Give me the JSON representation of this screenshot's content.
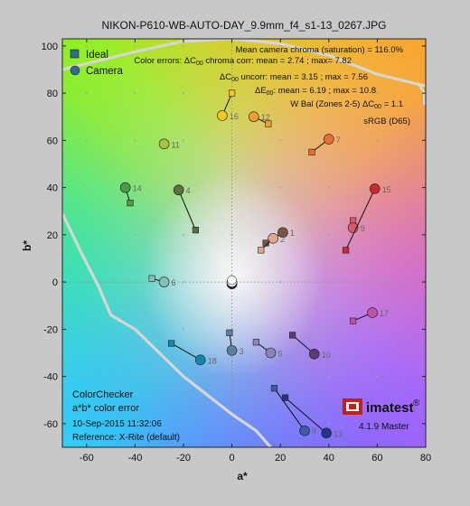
{
  "chart_data": {
    "type": "scatter",
    "title": "NIKON-P610-WB-AUTO-DAY_9.9mm_f4_s1-13_0267.JPG",
    "xlabel": "a*",
    "ylabel": "b*",
    "xlim": [
      -70,
      80
    ],
    "ylim": [
      -70,
      103
    ],
    "xticks": [
      -60,
      -40,
      -20,
      0,
      20,
      40,
      60,
      80
    ],
    "yticks": [
      -60,
      -40,
      -20,
      0,
      20,
      40,
      60,
      80,
      100
    ],
    "grid": true,
    "legend": {
      "placement": "top-left",
      "entries": [
        {
          "name": "Ideal",
          "marker": "square",
          "color": "#2e6e8e"
        },
        {
          "name": "Camera",
          "marker": "circle",
          "color": "#2e6e8e"
        }
      ]
    },
    "annotations": {
      "line1": "Mean camera chroma (saturation) = 116.0%",
      "line2_prefix": "Color errors:  ΔC",
      "line2_sub": "00",
      "line2_suffix": " chroma corr: mean = 2.74 ; max= 7.82",
      "line3_prefix": "ΔC",
      "line3_sub": "00",
      "line3_suffix": " uncorr: mean = 3.15 ; max = 7.56",
      "line4_prefix": "ΔE",
      "line4_sub": "00",
      "line4_suffix": ": mean = 6.19 ; max = 10.8",
      "line5_prefix": "W Bal (Zones 2-5)   ΔC",
      "line5_sub": "00",
      "line5_suffix": " = 1.1",
      "line6": "sRGB (D65)"
    },
    "info": {
      "chart_name": "ColorChecker",
      "subtitle": "a*b* color error",
      "date": "10-Sep-2015 11:32:06",
      "reference": "Reference: X-Rite (default)"
    },
    "brand": {
      "name": "imatest",
      "mark": "®",
      "version": "4.1.9 Master"
    },
    "patches": [
      {
        "id": "1",
        "ideal": [
          14,
          16.5
        ],
        "camera": [
          21,
          21
        ],
        "color": "#7a5545"
      },
      {
        "id": "2",
        "ideal": [
          12,
          13.5
        ],
        "camera": [
          17,
          18.5
        ],
        "color": "#e0a88e"
      },
      {
        "id": "3",
        "ideal": [
          -1,
          -21.5
        ],
        "camera": [
          0,
          -29
        ],
        "color": "#5c7ea0"
      },
      {
        "id": "4",
        "ideal": [
          -15,
          22
        ],
        "camera": [
          -22,
          39
        ],
        "color": "#5a7040"
      },
      {
        "id": "5",
        "ideal": [
          10,
          -25.5
        ],
        "camera": [
          16,
          -30
        ],
        "color": "#8a86bc"
      },
      {
        "id": "6",
        "ideal": [
          -33,
          1.5
        ],
        "camera": [
          -28,
          0
        ],
        "color": "#85c0b6"
      },
      {
        "id": "7",
        "ideal": [
          33,
          55
        ],
        "camera": [
          40,
          60.5
        ],
        "color": "#e86e34"
      },
      {
        "id": "8",
        "ideal": [
          17.5,
          -45
        ],
        "camera": [
          30,
          -63
        ],
        "color": "#3e5aa8"
      },
      {
        "id": "9",
        "ideal": [
          50,
          26
        ],
        "camera": [
          50,
          23
        ],
        "color": "#d85a68"
      },
      {
        "id": "10",
        "ideal": [
          25,
          -22.5
        ],
        "camera": [
          34,
          -30.5
        ],
        "color": "#5a3c70"
      },
      {
        "id": "11",
        "ideal": [
          -28,
          58
        ],
        "camera": [
          -28,
          58.5
        ],
        "color": "#a6c440"
      },
      {
        "id": "12",
        "ideal": [
          15,
          67
        ],
        "camera": [
          9,
          70
        ],
        "color": "#f0a030"
      },
      {
        "id": "13",
        "ideal": [
          22,
          -49
        ],
        "camera": [
          39,
          -64
        ],
        "color": "#24348a"
      },
      {
        "id": "14",
        "ideal": [
          -42,
          33.5
        ],
        "camera": [
          -44,
          40
        ],
        "color": "#4e9a48"
      },
      {
        "id": "15",
        "ideal": [
          47,
          13.5
        ],
        "camera": [
          59,
          39.5
        ],
        "color": "#c82a30"
      },
      {
        "id": "16",
        "ideal": [
          0,
          80
        ],
        "camera": [
          -4,
          70.5
        ],
        "color": "#f0c820"
      },
      {
        "id": "17",
        "ideal": [
          50,
          -16.5
        ],
        "camera": [
          58,
          -13
        ],
        "color": "#c050a0"
      },
      {
        "id": "18",
        "ideal": [
          -25,
          -26
        ],
        "camera": [
          -13,
          -33
        ],
        "color": "#0e88ac"
      }
    ],
    "neutrals": [
      {
        "ideal": [
          0,
          0
        ],
        "camera": [
          0,
          0
        ]
      }
    ],
    "gamut_boundary": [
      [
        -70,
        90
      ],
      [
        -60,
        92.5
      ],
      [
        -40,
        97.5
      ],
      [
        -20,
        102
      ],
      [
        0,
        103
      ],
      [
        20,
        101
      ],
      [
        40,
        96
      ],
      [
        60,
        88
      ],
      [
        80,
        83
      ]
    ],
    "gamut_boundary_lower": [
      [
        -70,
        29
      ],
      [
        -62,
        12
      ],
      [
        -55,
        -2
      ],
      [
        -50,
        -14
      ],
      [
        -40,
        -20
      ],
      [
        -20,
        -40
      ],
      [
        0,
        -56
      ],
      [
        10,
        -63
      ],
      [
        16,
        -70
      ]
    ],
    "gamut_boundary_right": [
      [
        77,
        84
      ],
      [
        79.5,
        80
      ],
      [
        79.5,
        75
      ]
    ]
  }
}
